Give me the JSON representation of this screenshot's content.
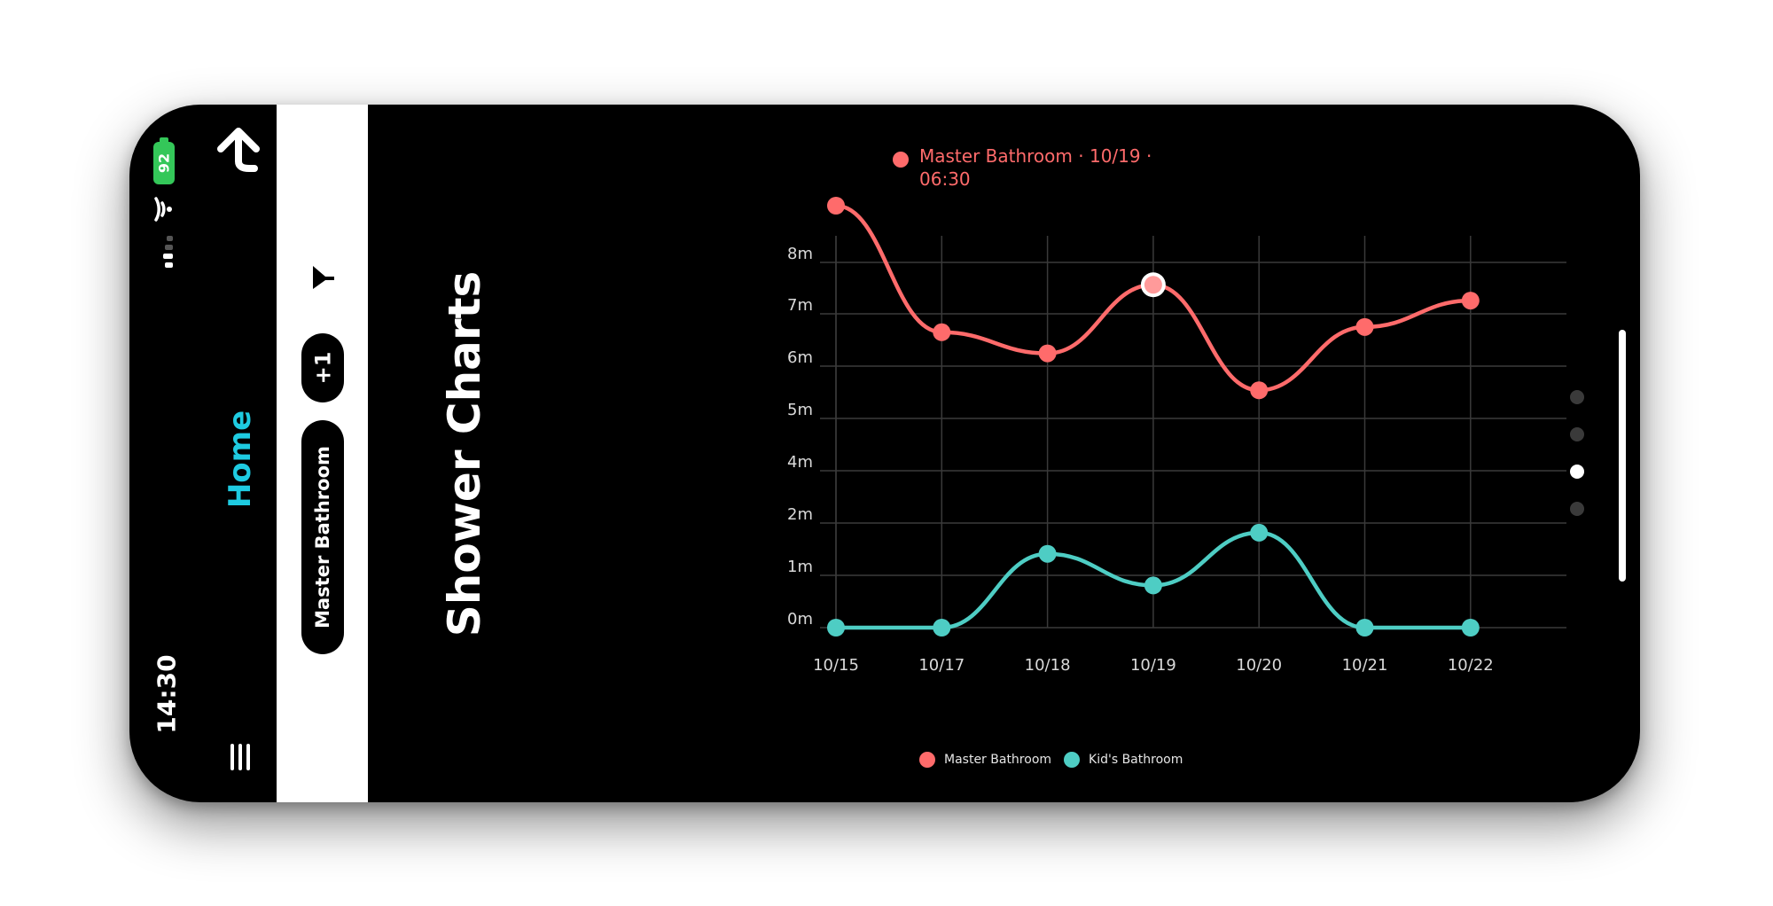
{
  "status": {
    "time": "14:30",
    "battery": "92"
  },
  "sidebar": {
    "home_label": "Home"
  },
  "filters": {
    "location_chip": "Master Bathroom",
    "more_chip": "+1"
  },
  "page": {
    "title": "Shower Charts"
  },
  "tooltip": {
    "text": "Master Bathroom · 10/19 · 06:30",
    "color": "#ff6b6b"
  },
  "chart_data": {
    "type": "line",
    "categories": [
      "10/15",
      "10/17",
      "10/18",
      "10/19",
      "10/20",
      "10/21",
      "10/22"
    ],
    "y_ticks": [
      "0m",
      "1m",
      "2m",
      "4m",
      "5m",
      "6m",
      "7m",
      "8m"
    ],
    "series": [
      {
        "name": "Master Bathroom",
        "color": "#ff6b6b",
        "values": [
          8.0,
          5.6,
          5.2,
          6.5,
          4.5,
          5.7,
          6.2
        ]
      },
      {
        "name": "Kid's Bathroom",
        "color": "#4ecdc4",
        "values": [
          0.0,
          0.0,
          1.4,
          0.8,
          1.8,
          0.0,
          0.0
        ]
      }
    ],
    "highlight": {
      "series": 0,
      "index": 3
    },
    "grid": true,
    "legend": "bottom"
  },
  "pagination": {
    "pages": 4,
    "active": 2
  }
}
